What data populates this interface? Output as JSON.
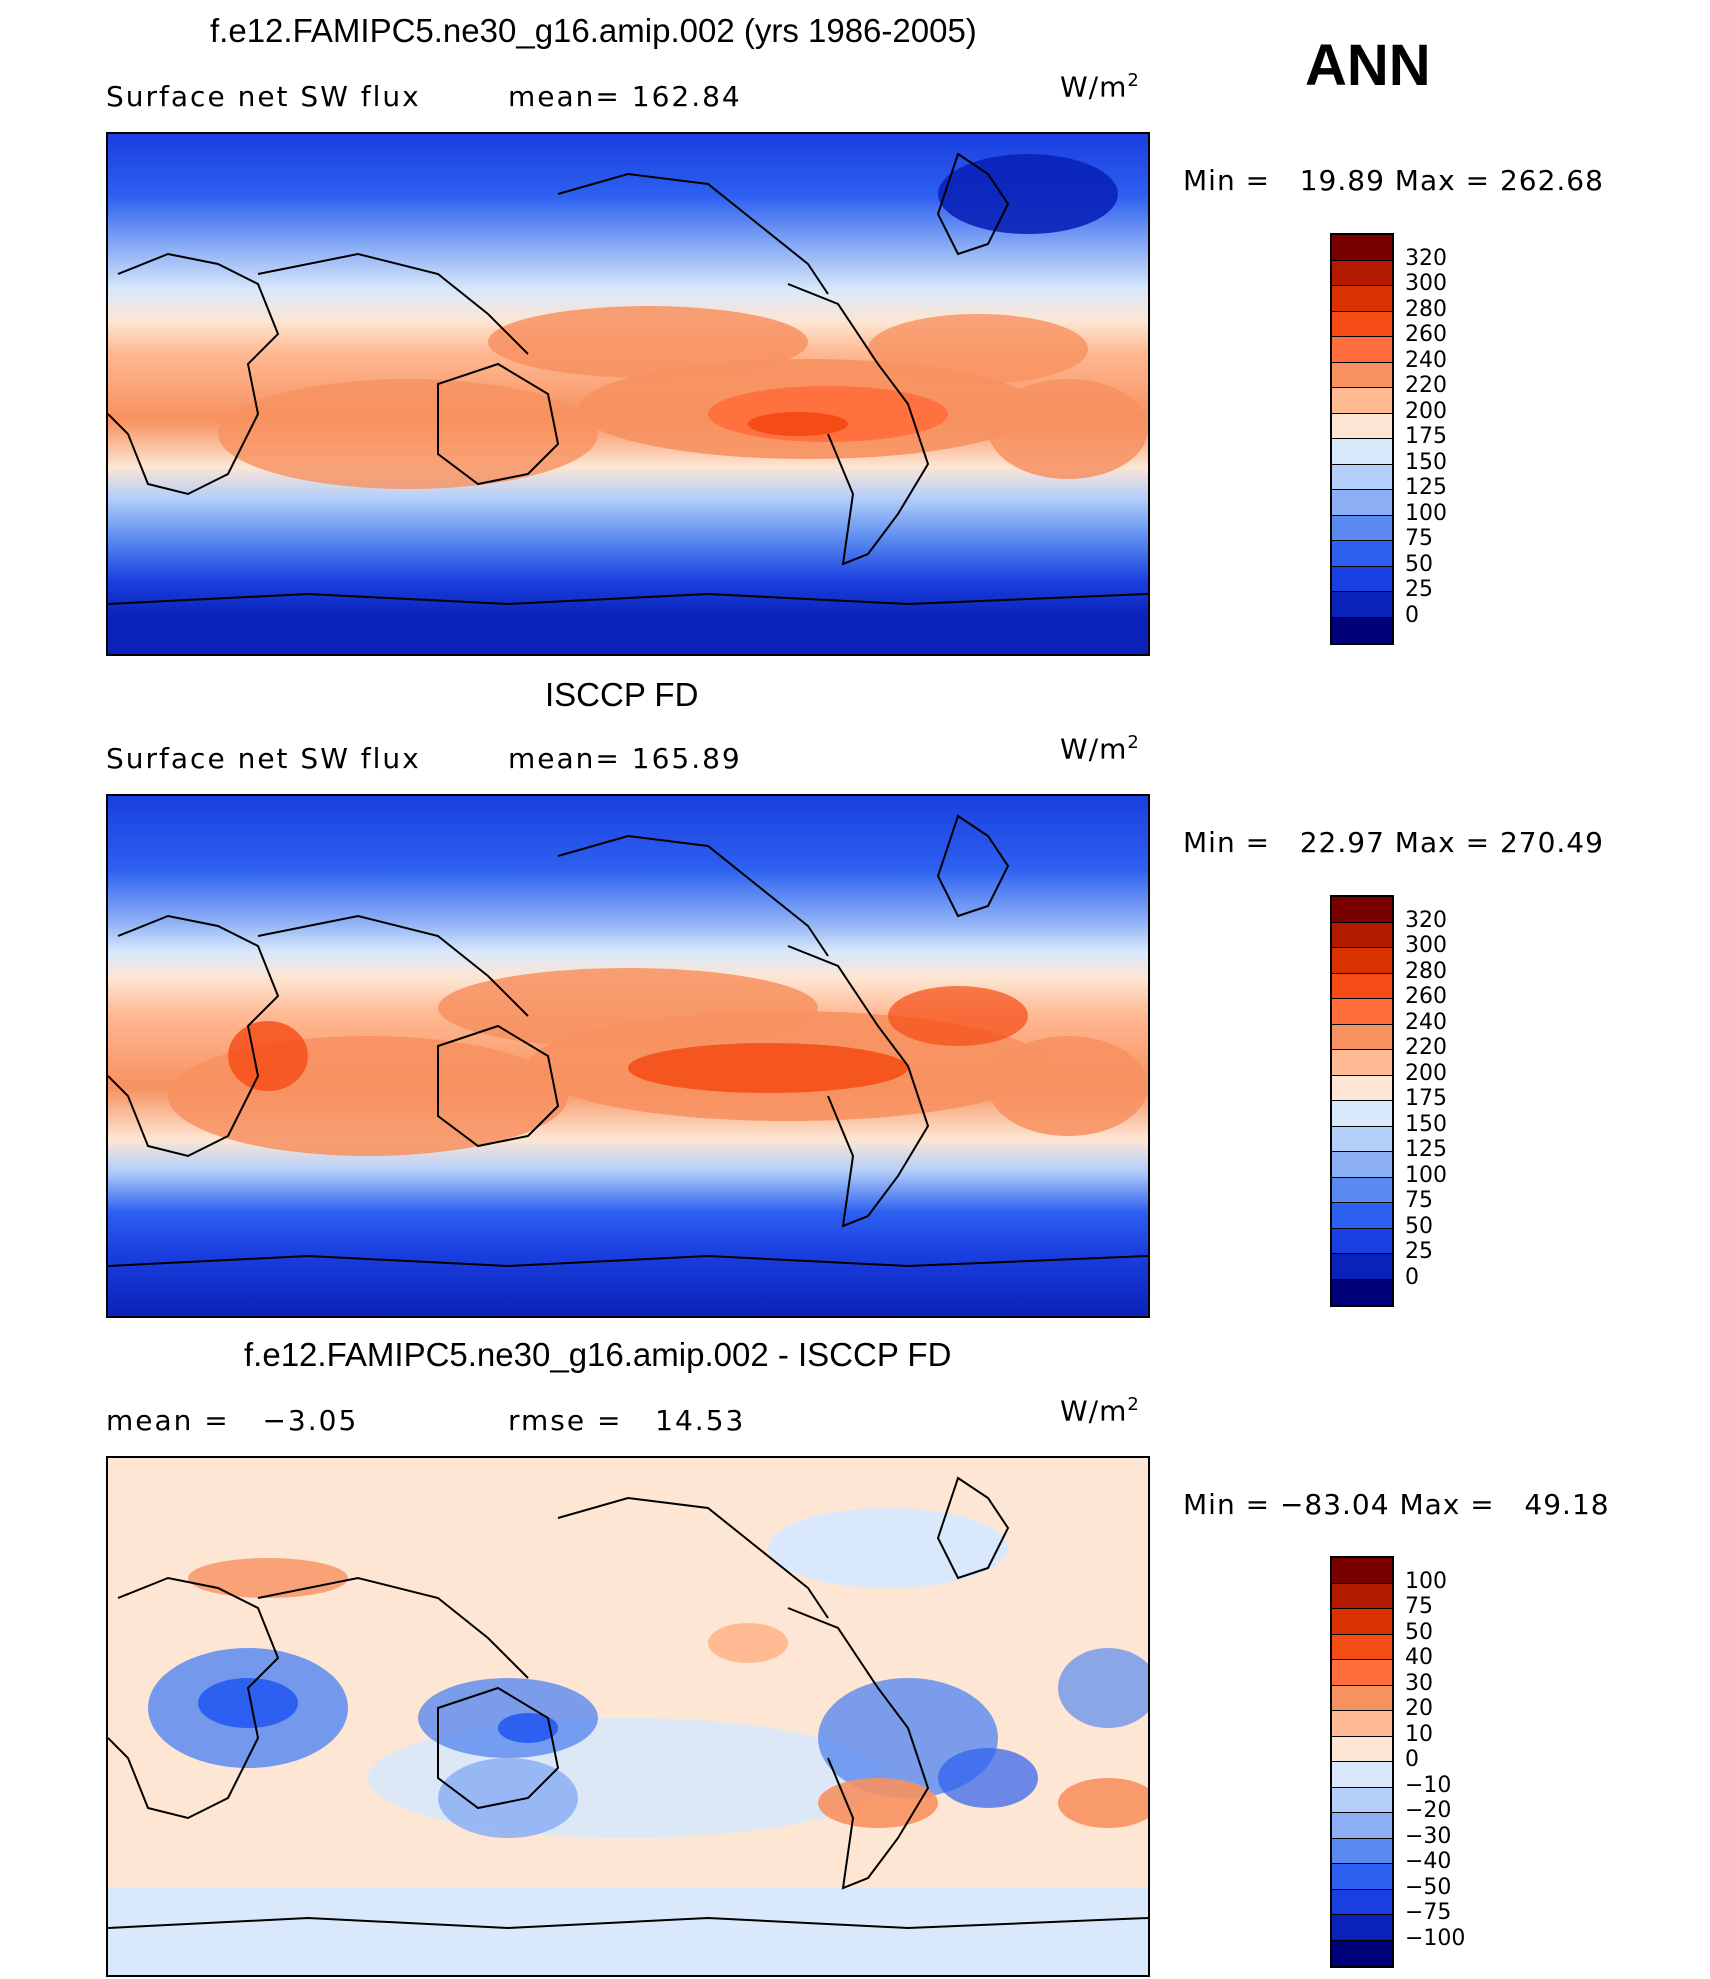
{
  "season": "ANN",
  "panels": [
    {
      "title": "f.e12.FAMIPC5.ne30_g16.amip.002 (yrs 1986-2005)",
      "left_label": "Surface net SW flux",
      "stat_label": "mean= 162.84",
      "units_base": "W/m",
      "units_exp": "2",
      "minmax": "Min =   19.89 Max = 262.68",
      "map_name": "model-sw-flux-map"
    },
    {
      "title": "ISCCP FD",
      "left_label": "Surface net SW flux",
      "stat_label": "mean= 165.89",
      "units_base": "W/m",
      "units_exp": "2",
      "minmax": "Min =   22.97 Max = 270.49",
      "map_name": "obs-sw-flux-map"
    },
    {
      "title": "f.e12.FAMIPC5.ne30_g16.amip.002 - ISCCP FD",
      "left_label": "mean =   −3.05",
      "stat_label": "rmse =   14.53",
      "units_base": "W/m",
      "units_exp": "2",
      "minmax": "Min = −83.04 Max =   49.18",
      "map_name": "difference-map"
    }
  ],
  "colorbars": [
    {
      "labels": [
        "320",
        "300",
        "280",
        "260",
        "240",
        "220",
        "200",
        "175",
        "150",
        "125",
        "100",
        "75",
        "50",
        "25",
        "0"
      ],
      "colors": [
        "#7a0000",
        "#b31b00",
        "#d93200",
        "#f54b14",
        "#ff6e3c",
        "#f79160",
        "#ffb993",
        "#fde6d3",
        "#d9e8fb",
        "#b4cffa",
        "#8caff5",
        "#5a8af0",
        "#2d60f0",
        "#1a3fe0",
        "#0a22b8",
        "#00007a"
      ]
    },
    {
      "labels": [
        "320",
        "300",
        "280",
        "260",
        "240",
        "220",
        "200",
        "175",
        "150",
        "125",
        "100",
        "75",
        "50",
        "25",
        "0"
      ],
      "colors": [
        "#7a0000",
        "#b31b00",
        "#d93200",
        "#f54b14",
        "#ff6e3c",
        "#f79160",
        "#ffb993",
        "#fde6d3",
        "#d9e8fb",
        "#b4cffa",
        "#8caff5",
        "#5a8af0",
        "#2d60f0",
        "#1a3fe0",
        "#0a22b8",
        "#00007a"
      ]
    },
    {
      "labels": [
        "100",
        "75",
        "50",
        "40",
        "30",
        "20",
        "10",
        "0",
        "−10",
        "−20",
        "−30",
        "−40",
        "−50",
        "−75",
        "−100"
      ],
      "colors": [
        "#7a0000",
        "#b31b00",
        "#d93200",
        "#f54b14",
        "#ff6e3c",
        "#f79160",
        "#ffb993",
        "#fde6d3",
        "#d9e8fb",
        "#b4cffa",
        "#8caff5",
        "#5a8af0",
        "#2d60f0",
        "#1a3fe0",
        "#0a22b8",
        "#00007a"
      ]
    }
  ]
}
